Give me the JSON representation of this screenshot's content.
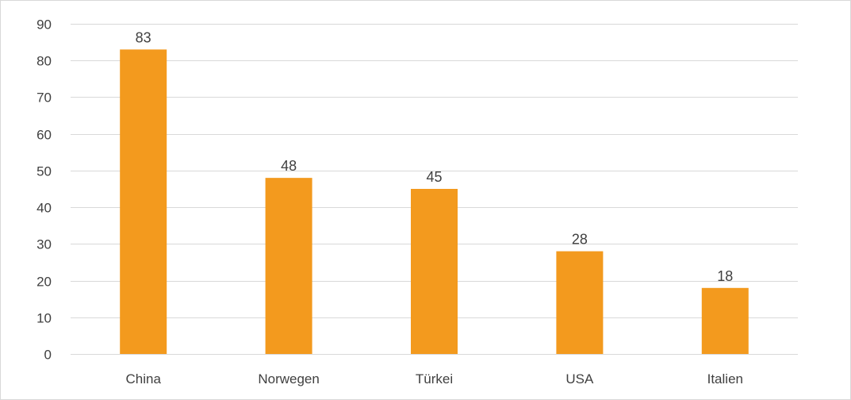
{
  "chart_data": {
    "type": "bar",
    "categories": [
      "China",
      "Norwegen",
      "Türkei",
      "USA",
      "Italien"
    ],
    "values": [
      83,
      48,
      45,
      28,
      18
    ],
    "data_labels": [
      "83",
      "48",
      "45",
      "28",
      "18"
    ],
    "y_ticks": [
      "0",
      "10",
      "20",
      "30",
      "40",
      "50",
      "60",
      "70",
      "80",
      "90"
    ],
    "ylim": [
      0,
      90
    ],
    "grid": true,
    "bar_color": "#f39a1e",
    "grid_color": "#d9d9d9",
    "text_color": "#404040",
    "title": "",
    "xlabel": "",
    "ylabel": ""
  }
}
